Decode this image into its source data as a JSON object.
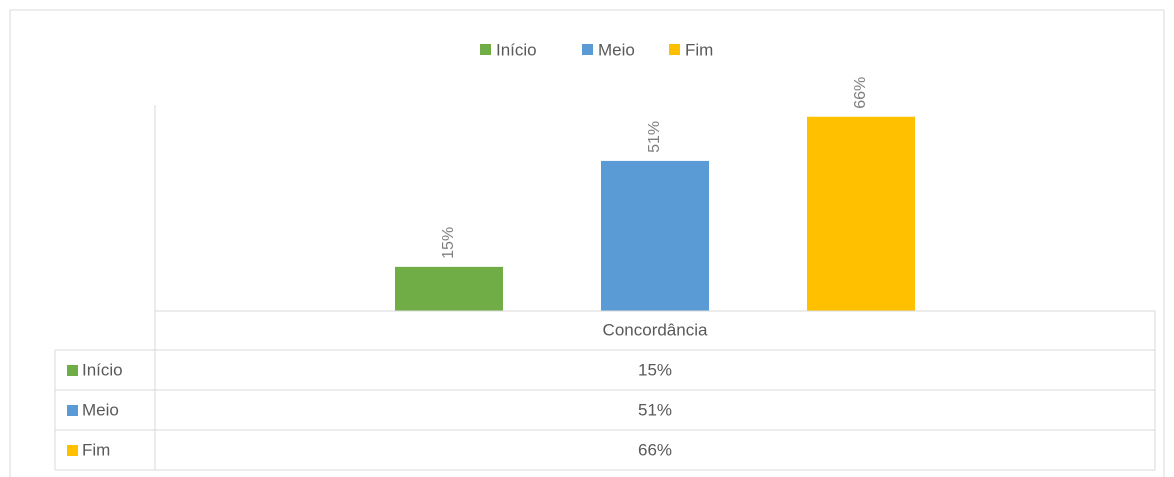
{
  "chart_data": {
    "type": "bar",
    "categories": [
      "Concordância"
    ],
    "series": [
      {
        "name": "Início",
        "color": "#70ad47",
        "values": [
          15
        ],
        "value_labels": [
          "15%"
        ]
      },
      {
        "name": "Meio",
        "color": "#5b9bd5",
        "values": [
          51
        ],
        "value_labels": [
          "51%"
        ]
      },
      {
        "name": "Fim",
        "color": "#ffc000",
        "values": [
          66
        ],
        "value_labels": [
          "66%"
        ]
      }
    ],
    "ylim": [
      0,
      70
    ],
    "legend": "top",
    "data_table": true
  }
}
